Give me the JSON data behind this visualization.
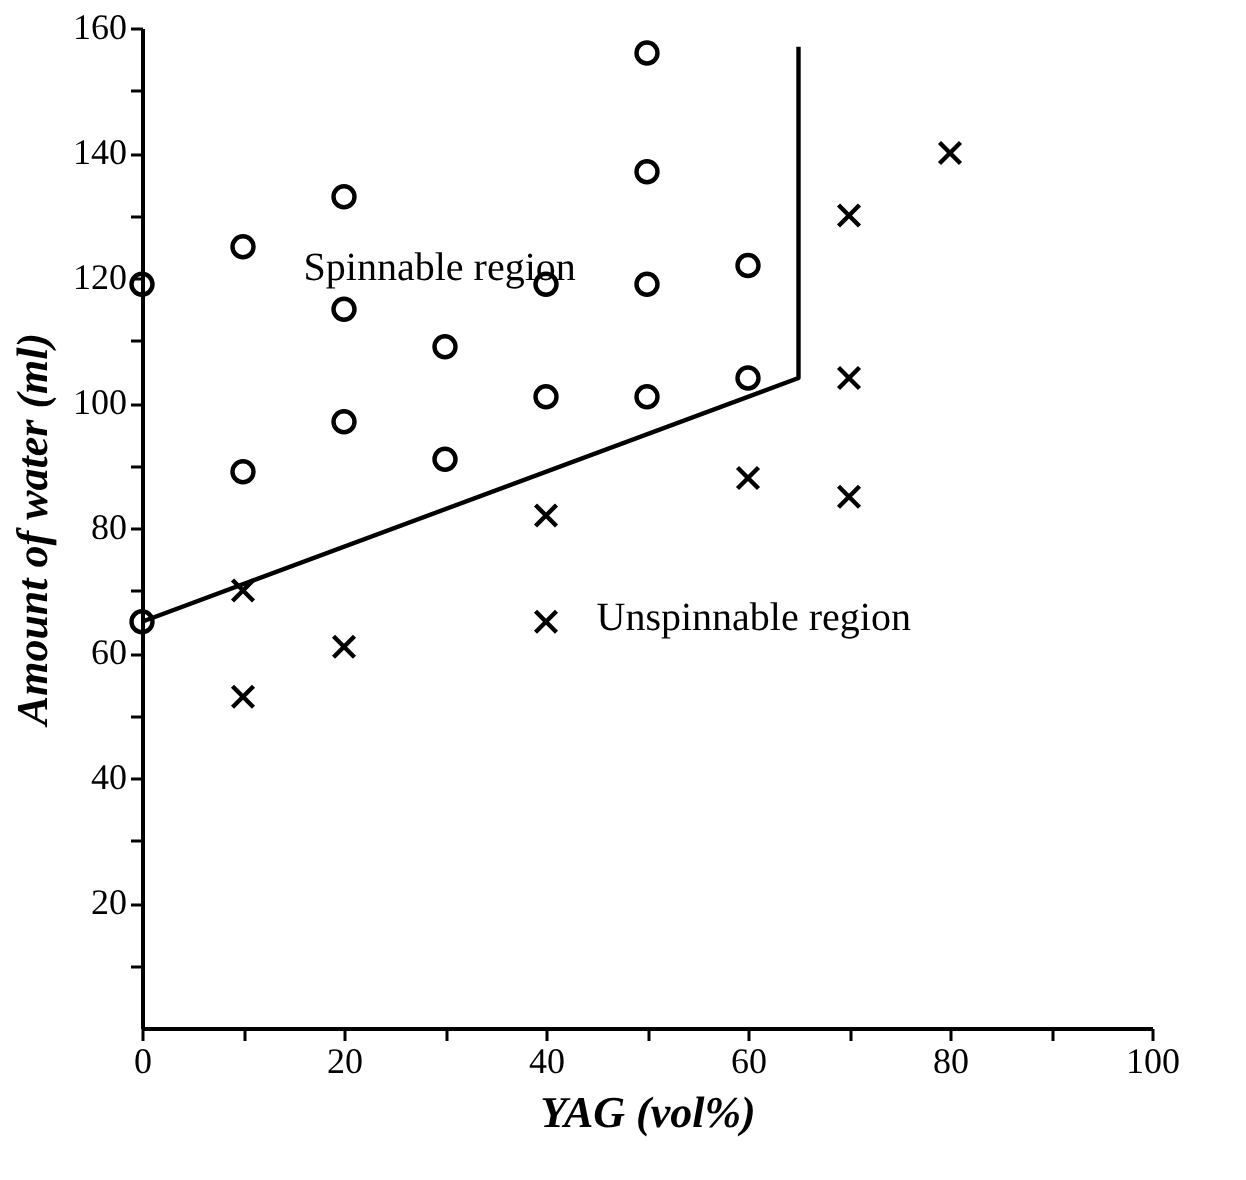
{
  "chart_data": {
    "type": "scatter",
    "xlabel": "YAG (vol%)",
    "ylabel": "Amount of water (ml)",
    "xlim": [
      0,
      100
    ],
    "ylim": [
      0,
      160
    ],
    "xticks": [
      0,
      {
        "value": 10,
        "label": null
      },
      20,
      {
        "value": 30,
        "label": null
      },
      40,
      {
        "value": 50,
        "label": null
      },
      60,
      {
        "value": 70,
        "label": null
      },
      80,
      {
        "value": 90,
        "label": null
      },
      100
    ],
    "yticks": [
      {
        "value": 10,
        "label": null
      },
      20,
      {
        "value": 30,
        "label": null
      },
      40,
      {
        "value": 50,
        "label": null
      },
      60,
      {
        "value": 70,
        "label": null
      },
      80,
      {
        "value": 90,
        "label": null
      },
      100,
      {
        "value": 110,
        "label": null
      },
      120,
      {
        "value": 130,
        "label": null
      },
      140,
      {
        "value": 150,
        "label": null
      },
      160
    ],
    "grid": false,
    "series": [
      {
        "type": "line",
        "color": "#000000",
        "marker": "none",
        "line_style": "solid",
        "x": [
          0,
          65,
          65
        ],
        "values": [
          65,
          104,
          157
        ]
      },
      {
        "color": "#000000",
        "marker": "circle",
        "x": [
          0,
          0,
          10,
          10,
          20,
          20,
          20,
          30,
          30,
          40,
          40,
          50,
          50,
          50,
          50,
          60,
          60
        ],
        "values": [
          119,
          65,
          125,
          89,
          133,
          115,
          97,
          109,
          91,
          119,
          101,
          156,
          137,
          119,
          101,
          122,
          104
        ]
      },
      {
        "color": "#000000",
        "marker": "cross",
        "x": [
          10,
          10,
          20,
          40,
          40,
          60,
          70,
          70,
          70,
          80
        ],
        "values": [
          70,
          53,
          61,
          82,
          65,
          88,
          130,
          104,
          85,
          140
        ]
      }
    ],
    "annotations": [
      "Spinnable region",
      "Unspinnable region"
    ]
  }
}
